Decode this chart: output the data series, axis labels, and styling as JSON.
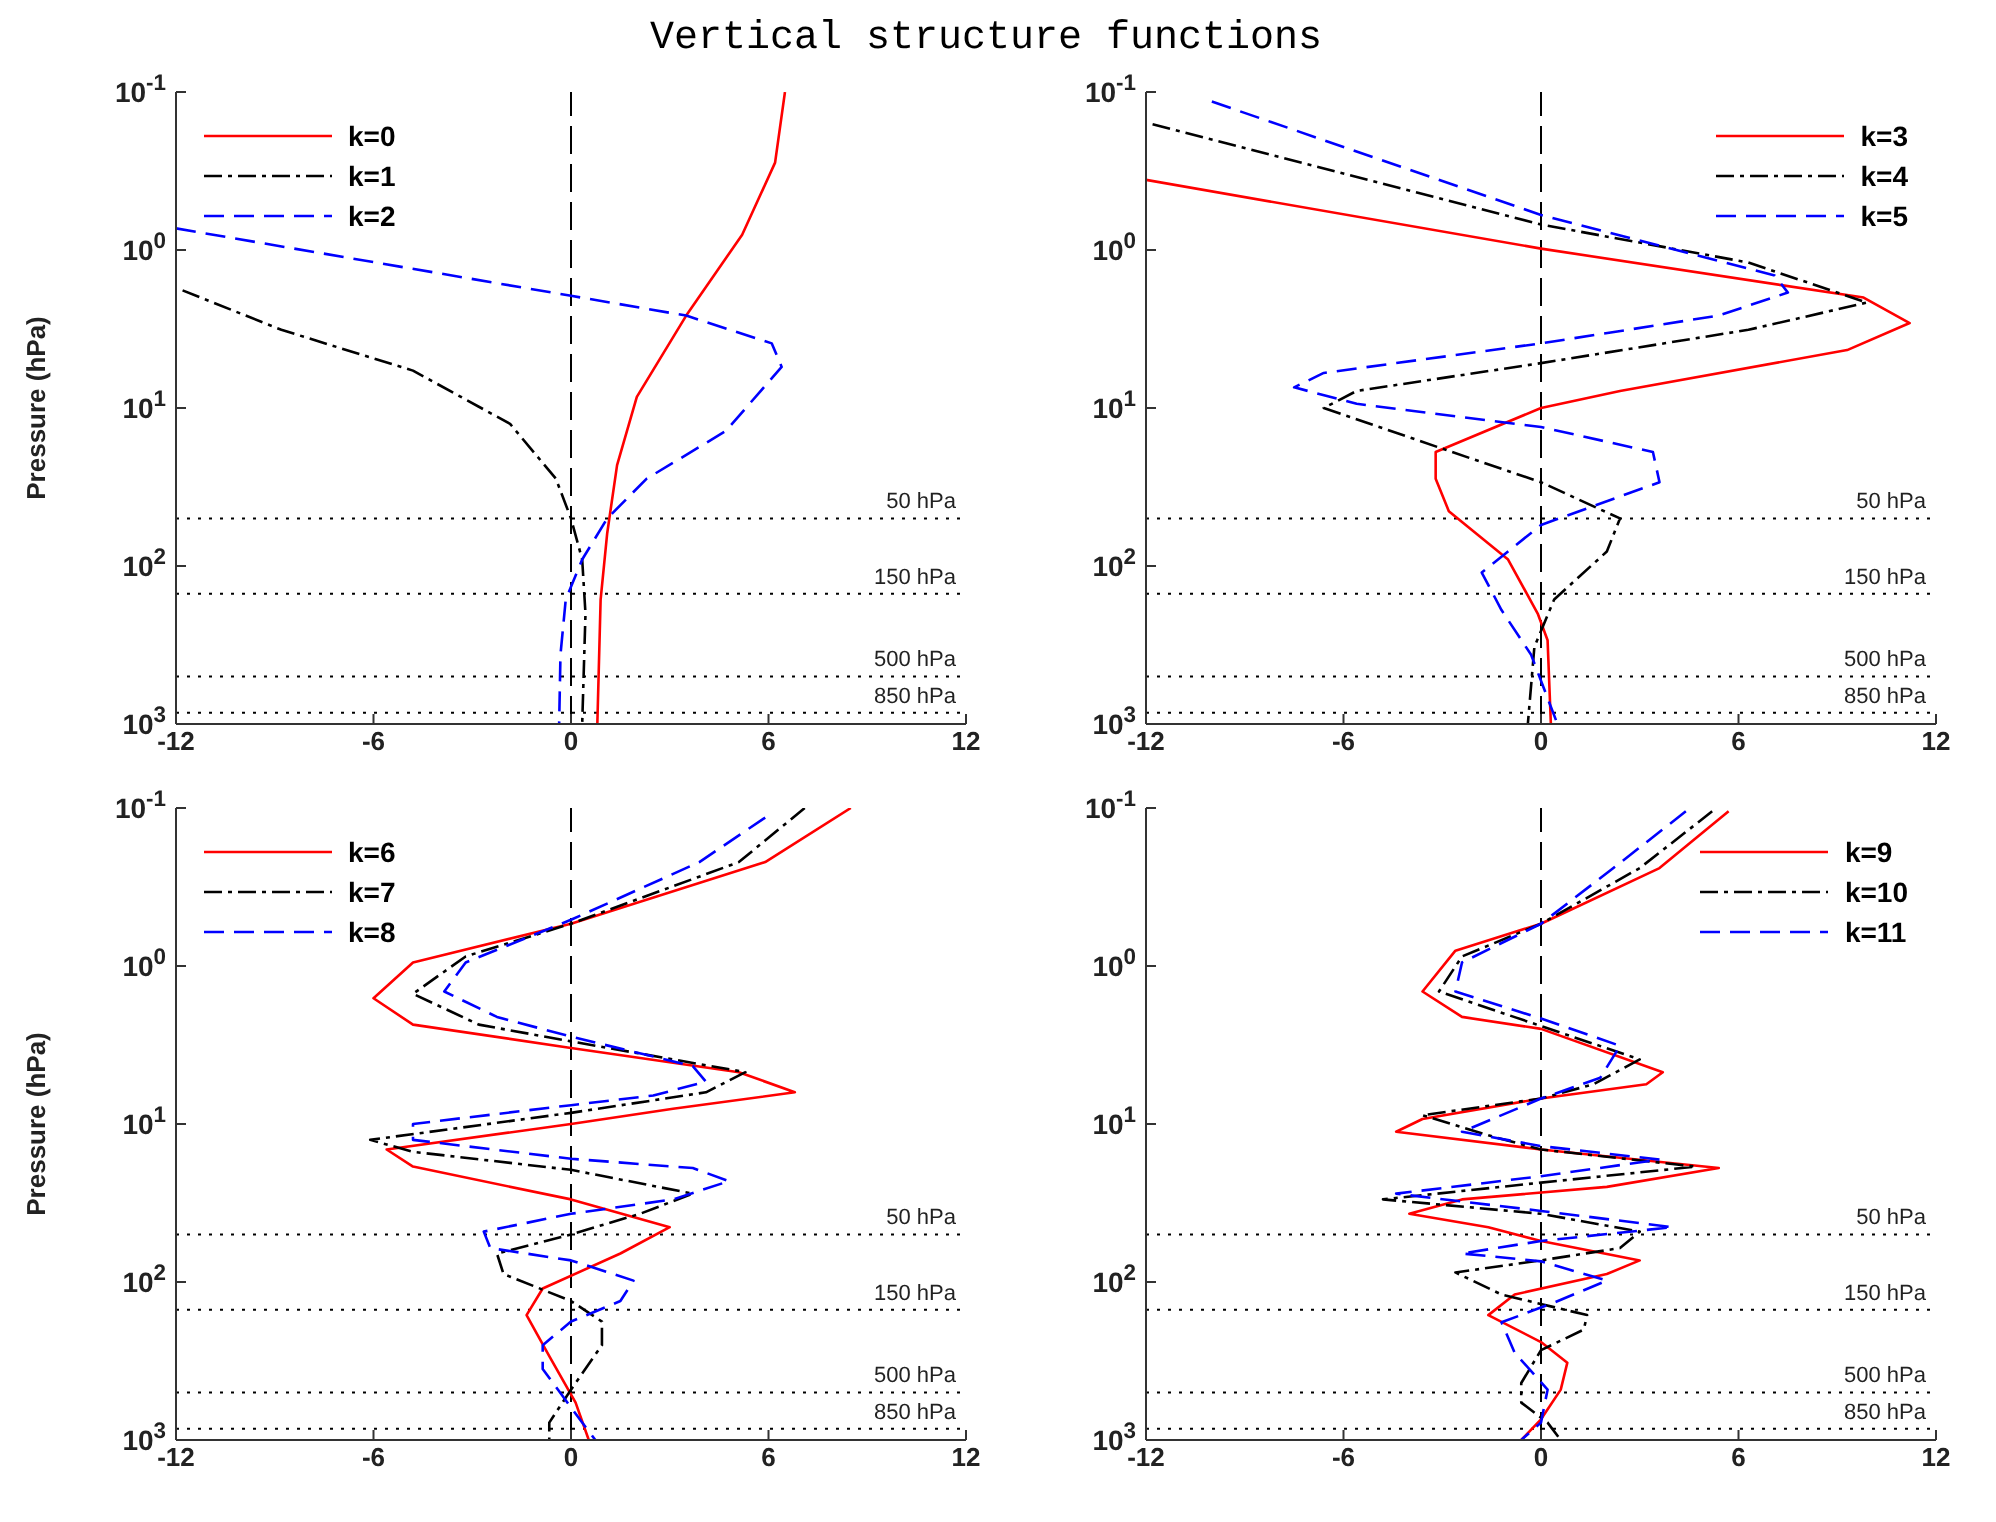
{
  "chart_data": [
    {
      "type": "line",
      "title": "Vertical structure functions",
      "ylabel": "Pressure (hPa)",
      "log": "y",
      "legend": "top left",
      "xlim": [
        -12,
        12
      ],
      "xticks": [
        -12,
        -6,
        0,
        6,
        12
      ],
      "ylim": [
        1000,
        0.1
      ],
      "yticks": [
        {
          "value": 0.1,
          "label": "10$^{-1}$"
        },
        {
          "value": 1,
          "label": "10$^{0}$"
        },
        {
          "value": 10,
          "label": "10$^{1}$"
        },
        {
          "value": 100,
          "label": "10$^{2}$"
        },
        {
          "value": 1000,
          "label": "10$^{3}$"
        }
      ],
      "ref_lines": [
        {
          "axis": "x",
          "value": 0,
          "line_style": "dashed",
          "color": "#000000"
        },
        {
          "axis": "y",
          "value": 50,
          "label": "50 hPa",
          "line_style": "dotted",
          "color": "#000000"
        },
        {
          "axis": "y",
          "value": 150,
          "label": "150 hPa",
          "line_style": "dotted",
          "color": "#000000"
        },
        {
          "axis": "y",
          "value": 500,
          "label": "500 hPa",
          "line_style": "dotted",
          "color": "#000000"
        },
        {
          "axis": "y",
          "value": 850,
          "label": "850 hPa",
          "line_style": "dotted",
          "color": "#000000"
        }
      ],
      "series": [
        {
          "name": "k=0",
          "color": "#ff0000",
          "line_style": "solid",
          "x": [
            6.5,
            6.2,
            5.2,
            3.5,
            2.0,
            1.4,
            1.1,
            0.9,
            0.8
          ],
          "values": [
            0.1,
            0.28,
            0.8,
            2.6,
            8.5,
            23,
            62,
            163,
            1000
          ]
        },
        {
          "name": "k=1",
          "color": "#000000",
          "line_style": "dashdot",
          "x": [
            -11.8,
            -8.8,
            -4.8,
            -1.85,
            -0.46,
            0,
            0.34,
            0.44,
            0.34
          ],
          "values": [
            1.8,
            3.2,
            5.8,
            12.6,
            28,
            50,
            91,
            200,
            1000
          ]
        },
        {
          "name": "k=2",
          "color": "#0000ff",
          "line_style": "dashed",
          "x": [
            -12,
            0,
            3.5,
            6.1,
            6.4,
            4.7,
            2.3,
            1.1,
            0.34,
            -0.16,
            -0.32,
            -0.36
          ],
          "values": [
            0.73,
            1.95,
            2.6,
            3.9,
            5.5,
            14,
            28,
            50,
            91,
            163,
            365,
            1000
          ]
        }
      ]
    },
    {
      "type": "line",
      "log": "y",
      "legend": "top right",
      "xlim": [
        -12,
        12
      ],
      "xticks": [
        -12,
        -6,
        0,
        6,
        12
      ],
      "ylim": [
        1000,
        0.1
      ],
      "yticks": [
        {
          "value": 0.1,
          "label": "10$^{-1}$"
        },
        {
          "value": 1,
          "label": "10$^{0}$"
        },
        {
          "value": 10,
          "label": "10$^{1}$"
        },
        {
          "value": 100,
          "label": "10$^{2}$"
        },
        {
          "value": 1000,
          "label": "10$^{3}$"
        }
      ],
      "ref_lines": [
        {
          "axis": "x",
          "value": 0,
          "line_style": "dashed",
          "color": "#000000"
        },
        {
          "axis": "y",
          "value": 50,
          "label": "50 hPa",
          "line_style": "dotted",
          "color": "#000000"
        },
        {
          "axis": "y",
          "value": 150,
          "label": "150 hPa",
          "line_style": "dotted",
          "color": "#000000"
        },
        {
          "axis": "y",
          "value": 500,
          "label": "500 hPa",
          "line_style": "dotted",
          "color": "#000000"
        },
        {
          "axis": "y",
          "value": 850,
          "label": "850 hPa",
          "line_style": "dotted",
          "color": "#000000"
        }
      ],
      "series": [
        {
          "name": "k=3",
          "color": "#ff0000",
          "line_style": "solid",
          "x": [
            -12,
            0,
            9.8,
            11.2,
            9.3,
            2.4,
            0,
            -3.2,
            -3.2,
            -2.8,
            -1.0,
            -0.1,
            0.2,
            0.3
          ],
          "values": [
            0.36,
            0.98,
            2.0,
            2.9,
            4.3,
            7.8,
            10,
            19,
            28,
            45,
            91,
            200,
            295,
            1000
          ]
        },
        {
          "name": "k=4",
          "color": "#000000",
          "line_style": "dashdot",
          "x": [
            -11.8,
            0,
            6.3,
            9.9,
            6.3,
            0,
            -5.6,
            -6.6,
            -2.7,
            0,
            2.4,
            2.0,
            0.4,
            -0.2,
            -0.4
          ],
          "values": [
            0.16,
            0.69,
            1.2,
            2.15,
            3.2,
            5.2,
            7.8,
            10,
            19,
            29.5,
            50,
            81,
            163,
            324,
            1000
          ]
        },
        {
          "name": "k=5",
          "color": "#0000ff",
          "line_style": "dashed",
          "x": [
            -10,
            0,
            7.1,
            7.5,
            5.4,
            0,
            -6.6,
            -7.5,
            -5.6,
            0,
            3.4,
            3.6,
            0,
            -1.8,
            -1.2,
            -0.3,
            0.5
          ],
          "values": [
            0.115,
            0.6,
            1.45,
            1.86,
            2.6,
            3.9,
            6.0,
            7.4,
            9.4,
            13.2,
            19,
            29.5,
            55,
            110,
            190,
            365,
            1000
          ]
        }
      ]
    },
    {
      "type": "line",
      "ylabel": "Pressure (hPa)",
      "log": "y",
      "legend": "top left",
      "xlim": [
        -12,
        12
      ],
      "xticks": [
        -12,
        -6,
        0,
        6,
        12
      ],
      "ylim": [
        1000,
        0.1
      ],
      "yticks": [
        {
          "value": 0.1,
          "label": "10$^{-1}$"
        },
        {
          "value": 1,
          "label": "10$^{0}$"
        },
        {
          "value": 10,
          "label": "10$^{1}$"
        },
        {
          "value": 100,
          "label": "10$^{2}$"
        },
        {
          "value": 1000,
          "label": "10$^{3}$"
        }
      ],
      "ref_lines": [
        {
          "axis": "x",
          "value": 0,
          "line_style": "dashed",
          "color": "#000000"
        },
        {
          "axis": "y",
          "value": 50,
          "label": "50 hPa",
          "line_style": "dotted",
          "color": "#000000"
        },
        {
          "axis": "y",
          "value": 150,
          "label": "150 hPa",
          "line_style": "dotted",
          "color": "#000000"
        },
        {
          "axis": "y",
          "value": 500,
          "label": "500 hPa",
          "line_style": "dotted",
          "color": "#000000"
        },
        {
          "axis": "y",
          "value": 850,
          "label": "850 hPa",
          "line_style": "dotted",
          "color": "#000000"
        }
      ],
      "series": [
        {
          "name": "k=6",
          "color": "#ff0000",
          "line_style": "solid",
          "x": [
            8.5,
            5.9,
            0,
            -4.8,
            -6.0,
            -4.8,
            0,
            5.1,
            6.8,
            3.1,
            0,
            -5.6,
            -4.8,
            0,
            3.0,
            1.5,
            -0.86,
            -1.35,
            -0.66,
            0.14,
            0.54
          ],
          "values": [
            0.1,
            0.22,
            0.54,
            0.95,
            1.6,
            2.35,
            3.3,
            4.7,
            6.3,
            8.0,
            10,
            14.5,
            18.6,
            30,
            45,
            66,
            110,
            162,
            295,
            580,
            1000
          ]
        },
        {
          "name": "k=7",
          "color": "#000000",
          "line_style": "dashdot",
          "x": [
            7.1,
            5.1,
            0,
            -3.2,
            -4.8,
            -2.8,
            0,
            5.3,
            4.1,
            0,
            -6.1,
            -4.8,
            0,
            3.7,
            2.1,
            0,
            -2.25,
            -2.05,
            0,
            0.94,
            0.94,
            0,
            -0.66,
            -0.66
          ],
          "values": [
            0.1,
            0.22,
            0.54,
            0.87,
            1.5,
            2.35,
            3.0,
            4.7,
            6.3,
            8.5,
            12.6,
            15,
            19.5,
            27.6,
            37,
            50,
            66,
            89,
            132,
            178,
            251,
            480,
            776,
            1000
          ]
        },
        {
          "name": "k=8",
          "color": "#0000ff",
          "line_style": "dashed",
          "x": [
            5.9,
            3.9,
            0,
            -3.2,
            -3.85,
            -2.25,
            0,
            3.7,
            4.1,
            2.5,
            0,
            -4.8,
            -4.8,
            0,
            3.7,
            4.8,
            3.1,
            0,
            -2.65,
            -2.45,
            0,
            1.9,
            1.5,
            0,
            -0.86,
            -0.86,
            -0.26,
            0.34,
            0.74
          ],
          "values": [
            0.115,
            0.22,
            0.51,
            0.95,
            1.45,
            2.1,
            2.8,
            4.3,
            5.4,
            6.6,
            7.6,
            10,
            12.6,
            16.6,
            19,
            23,
            30,
            37,
            48,
            61,
            73,
            98,
            132,
            178,
            251,
            355,
            525,
            776,
            1000
          ]
        }
      ]
    },
    {
      "type": "line",
      "log": "y",
      "legend": "top right",
      "xlim": [
        -12,
        12
      ],
      "xticks": [
        -12,
        -6,
        0,
        6,
        12
      ],
      "ylim": [
        1000,
        0.1
      ],
      "yticks": [
        {
          "value": 0.1,
          "label": "10$^{-1}$"
        },
        {
          "value": 1,
          "label": "10$^{0}$"
        },
        {
          "value": 10,
          "label": "10$^{1}$"
        },
        {
          "value": 100,
          "label": "10$^{2}$"
        },
        {
          "value": 1000,
          "label": "10$^{3}$"
        }
      ],
      "ref_lines": [
        {
          "axis": "x",
          "value": 0,
          "line_style": "dashed",
          "color": "#000000"
        },
        {
          "axis": "y",
          "value": 50,
          "label": "50 hPa",
          "line_style": "dotted",
          "color": "#000000"
        },
        {
          "axis": "y",
          "value": 150,
          "label": "150 hPa",
          "line_style": "dotted",
          "color": "#000000"
        },
        {
          "axis": "y",
          "value": 500,
          "label": "500 hPa",
          "line_style": "dotted",
          "color": "#000000"
        },
        {
          "axis": "y",
          "value": 850,
          "label": "850 hPa",
          "line_style": "dotted",
          "color": "#000000"
        }
      ],
      "series": [
        {
          "name": "k=9",
          "color": "#ff0000",
          "line_style": "solid",
          "x": [
            5.7,
            3.6,
            0,
            -2.6,
            -3.6,
            -2.4,
            0,
            3.7,
            3.2,
            0,
            -3.6,
            -4.4,
            0,
            4.0,
            5.4,
            2.0,
            -2.4,
            -4.0,
            -1.6,
            0,
            3.0,
            2.0,
            -0.8,
            -1.6,
            0,
            0.8,
            0.6,
            0,
            -0.6
          ],
          "values": [
            0.105,
            0.24,
            0.54,
            0.8,
            1.45,
            2.1,
            2.5,
            4.7,
            5.6,
            6.9,
            9.3,
            11.2,
            14.5,
            17.7,
            19,
            25,
            30,
            37,
            45,
            55,
            73,
            89,
            120,
            162,
            240,
            324,
            480,
            740,
            1000
          ]
        },
        {
          "name": "k=10",
          "color": "#000000",
          "line_style": "dashdot",
          "x": [
            5.2,
            3.0,
            0,
            -2.4,
            -3.1,
            0,
            3.0,
            1.6,
            0,
            -3.6,
            -1.6,
            0,
            4.7,
            0,
            -4.8,
            0,
            3.0,
            2.4,
            0,
            -2.6,
            -1.2,
            1.4,
            1.3,
            0,
            -0.6,
            -0.6,
            0.2,
            0.6
          ],
          "values": [
            0.105,
            0.24,
            0.54,
            0.87,
            1.45,
            2.4,
            3.9,
            5.6,
            6.9,
            8.8,
            11.8,
            14.5,
            18.6,
            23.5,
            30,
            37,
            48,
            61,
            73,
            87,
            120,
            162,
            200,
            270,
            436,
            580,
            776,
            1000
          ]
        },
        {
          "name": "k=11",
          "color": "#0000ff",
          "line_style": "dashed",
          "x": [
            4.4,
            2.2,
            0,
            -2.4,
            -2.6,
            0,
            2.4,
            1.8,
            0,
            -2.4,
            0,
            3.6,
            0,
            -4.4,
            0,
            4.0,
            0,
            -2.4,
            0,
            2.0,
            0.4,
            -1.2,
            -0.8,
            0.2,
            0,
            -0.6
          ],
          "values": [
            0.105,
            0.24,
            0.54,
            0.95,
            1.45,
            2.15,
            3.2,
            5.1,
            6.9,
            11.2,
            13.8,
            16.8,
            21.4,
            27.6,
            35.5,
            45,
            55,
            66,
            74,
            98,
            135,
            180,
            280,
            480,
            776,
            1000
          ]
        }
      ]
    }
  ]
}
